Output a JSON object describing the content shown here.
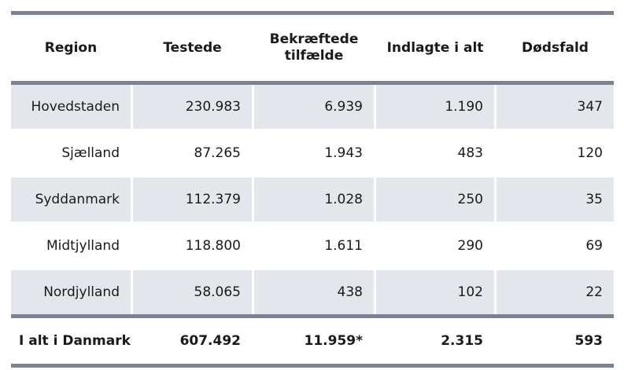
{
  "table": {
    "headers": [
      "Region",
      "Testede",
      "Bekræftede tilfælde",
      "Indlagte i alt",
      "Dødsfald"
    ],
    "rows": [
      [
        "Hovedstaden",
        "230.983",
        "6.939",
        "1.190",
        "347"
      ],
      [
        "Sjælland",
        "87.265",
        "1.943",
        "483",
        "120"
      ],
      [
        "Syddanmark",
        "112.379",
        "1.028",
        "250",
        "35"
      ],
      [
        "Midtjylland",
        "118.800",
        "1.611",
        "290",
        "69"
      ],
      [
        "Nordjylland",
        "58.065",
        "438",
        "102",
        "22"
      ]
    ],
    "total": [
      "I alt i Danmark",
      "607.492",
      "11.959*",
      "2.315",
      "593"
    ]
  },
  "colors": {
    "rule": "#7b8391",
    "shade": "#e3e6ea"
  }
}
